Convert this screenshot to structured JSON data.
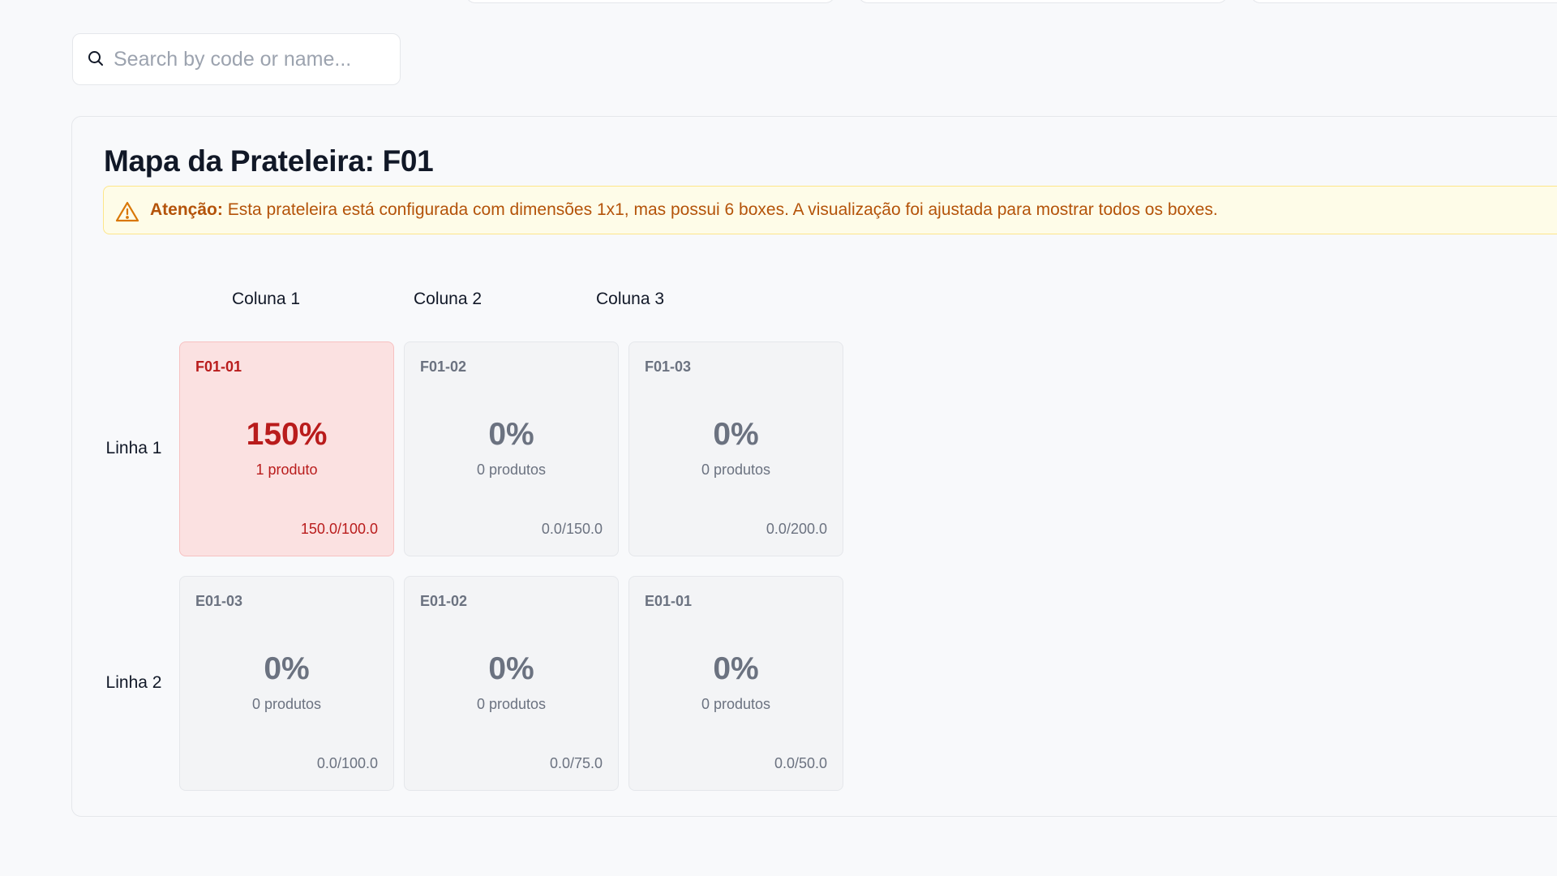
{
  "search": {
    "placeholder": "Search by code or name...",
    "value": ""
  },
  "shelf_map": {
    "title": "Mapa da Prateleira: F01",
    "alert": {
      "label": "Atenção:",
      "message": "Esta prateleira está configurada com dimensões 1x1, mas possui 6 boxes. A visualização foi ajustada para mostrar todos os boxes."
    },
    "columns": [
      "Coluna 1",
      "Coluna 2",
      "Coluna 3"
    ],
    "rows": [
      {
        "label": "Linha 1",
        "boxes": [
          {
            "code": "F01-01",
            "percent": "150%",
            "products": "1 produto",
            "capacity": "150.0/100.0",
            "status": "over"
          },
          {
            "code": "F01-02",
            "percent": "0%",
            "products": "0 produtos",
            "capacity": "0.0/150.0",
            "status": "empty"
          },
          {
            "code": "F01-03",
            "percent": "0%",
            "products": "0 produtos",
            "capacity": "0.0/200.0",
            "status": "empty"
          }
        ]
      },
      {
        "label": "Linha 2",
        "boxes": [
          {
            "code": "E01-03",
            "percent": "0%",
            "products": "0 produtos",
            "capacity": "0.0/100.0",
            "status": "empty"
          },
          {
            "code": "E01-02",
            "percent": "0%",
            "products": "0 produtos",
            "capacity": "0.0/75.0",
            "status": "empty"
          },
          {
            "code": "E01-01",
            "percent": "0%",
            "products": "0 produtos",
            "capacity": "0.0/50.0",
            "status": "empty"
          }
        ]
      }
    ]
  },
  "colors": {
    "over_capacity_text": "#b91c1c",
    "over_capacity_bg": "#fbe1e1",
    "empty_box_bg": "#f3f4f6",
    "alert_bg": "#fefce8",
    "alert_text": "#b45309"
  },
  "icons": {
    "search": "search-icon",
    "alert": "warning-triangle-icon"
  }
}
